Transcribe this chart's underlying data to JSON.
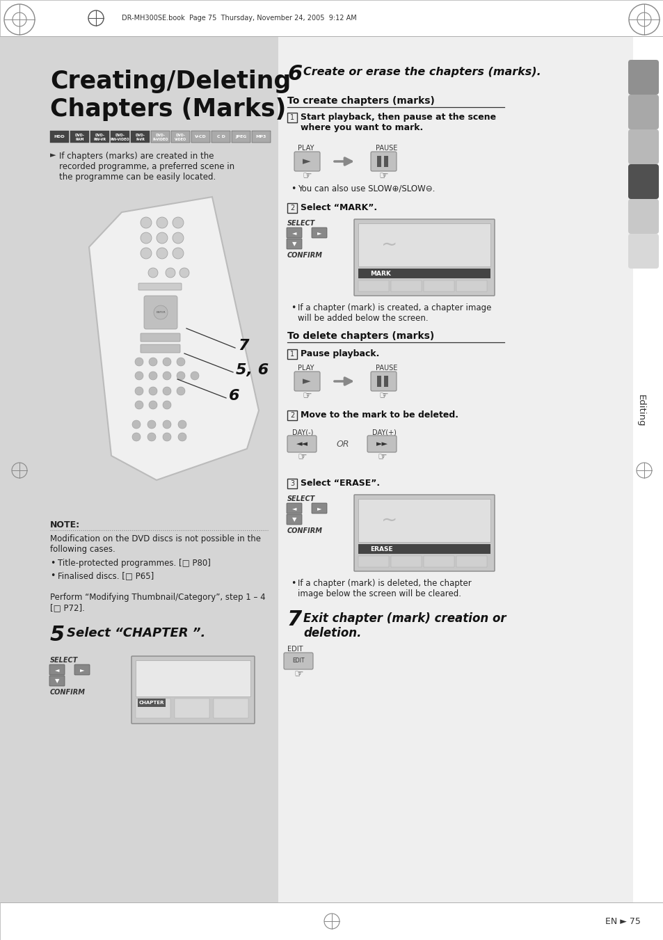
{
  "page_bg": "#ffffff",
  "header_text": "DR-MH300SE.book  Page 75  Thursday, November 24, 2005  9:12 AM",
  "title_line1": "Creating/Deleting",
  "title_line2": "Chapters (Marks)",
  "media_labels": [
    "HDD",
    "DVD-\nRAM",
    "DVD-\nRW-VR",
    "DVD-\nRW-VIDEO",
    "DVD-\nR-VR",
    "DVD-\nR-VIDEO",
    "DVD-\nVIDEO",
    "V-CD",
    "C D",
    "JPEG",
    "MP3"
  ],
  "media_dark": [
    0,
    1,
    2,
    3,
    4
  ],
  "bullet_text": "If chapters (marks) are created in the\nrecorded programme, a preferred scene in\nthe programme can be easily located.",
  "note_title": "NOTE:",
  "note_text1": "Modification on the DVD discs is not possible in the\nfollowing cases.",
  "note_text2": "Title-protected programmes. [□ P80]",
  "note_text3": "Finalised discs. [□ P65]",
  "perform_text": "Perform “Modifying Thumbnail/Category”, step 1 – 4\n[□ P72].",
  "step5_text": "Select “CHAPTER ”.",
  "step6_text": "Create or erase the chapters (marks).",
  "create_heading": "To create chapters (marks)",
  "create_step1": "Start playback, then pause at the scene\nwhere you want to mark.",
  "slow_text": "You can also use SLOW⊕/SLOW⊖.",
  "create_step2": "Select “MARK”.",
  "mark_note": "If a chapter (mark) is created, a chapter image\nwill be added below the screen.",
  "delete_heading": "To delete chapters (marks)",
  "delete_step1": "Pause playback.",
  "delete_step2": "Move to the mark to be deleted.",
  "delete_step3": "Select “ERASE”.",
  "erase_note": "If a chapter (mark) is deleted, the chapter\nimage below the screen will be cleared.",
  "step7_text": "Exit chapter (mark) creation or\ndeletion.",
  "sidebar_label": "Editing",
  "page_num": "EN ► 75",
  "left_panel_color": "#d5d5d5",
  "right_panel_color": "#efefef",
  "tab_colors": [
    "#909090",
    "#a8a8a8",
    "#b8b8b8",
    "#505050",
    "#c8c8c8",
    "#d8d8d8"
  ]
}
